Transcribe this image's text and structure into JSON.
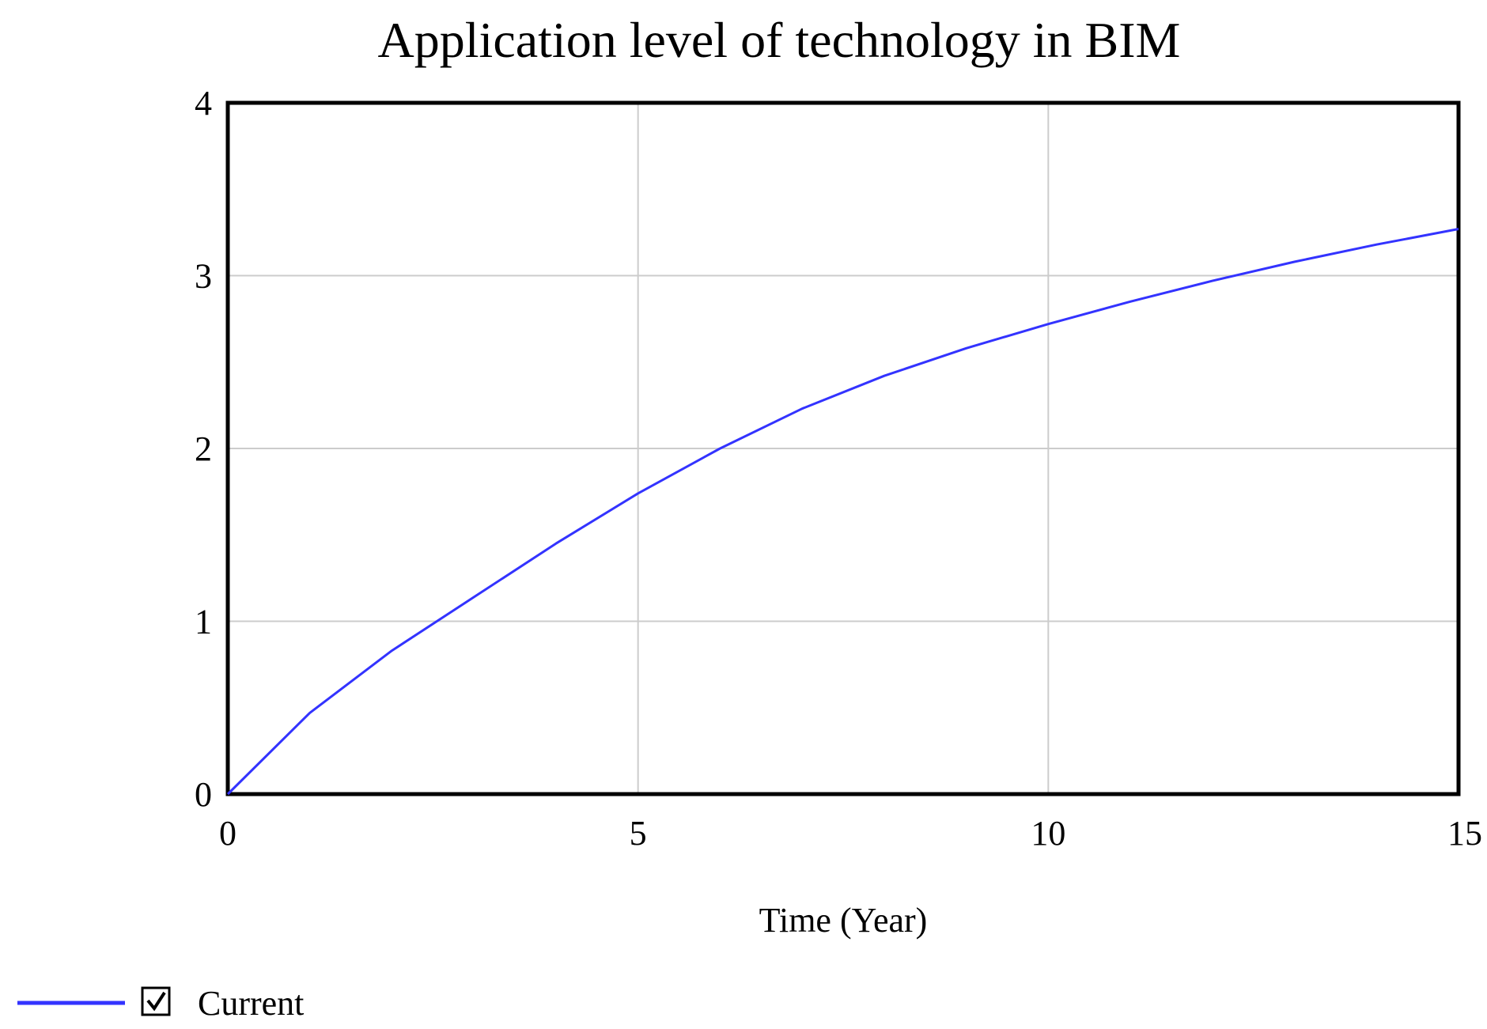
{
  "chart_data": {
    "type": "line",
    "title": "Application level of technology in BIM",
    "xlabel": "Time (Year)",
    "ylabel": "",
    "xlim": [
      0,
      15
    ],
    "ylim": [
      0,
      4
    ],
    "x_ticks": [
      "0",
      "5",
      "10",
      "15"
    ],
    "y_ticks": [
      "0",
      "1",
      "2",
      "3",
      "4"
    ],
    "grid": true,
    "legend_position": "bottom-left",
    "series": [
      {
        "name": "Current",
        "color": "#3333ff",
        "x": [
          0,
          1,
          2,
          3,
          4,
          5,
          6,
          7,
          8,
          9,
          10,
          11,
          12,
          13,
          14,
          15
        ],
        "values": [
          0,
          0.47,
          0.83,
          1.14,
          1.45,
          1.74,
          2.0,
          2.23,
          2.42,
          2.58,
          2.72,
          2.85,
          2.97,
          3.08,
          3.18,
          3.27
        ]
      }
    ],
    "legend": {
      "checkbox_checked": true
    }
  }
}
